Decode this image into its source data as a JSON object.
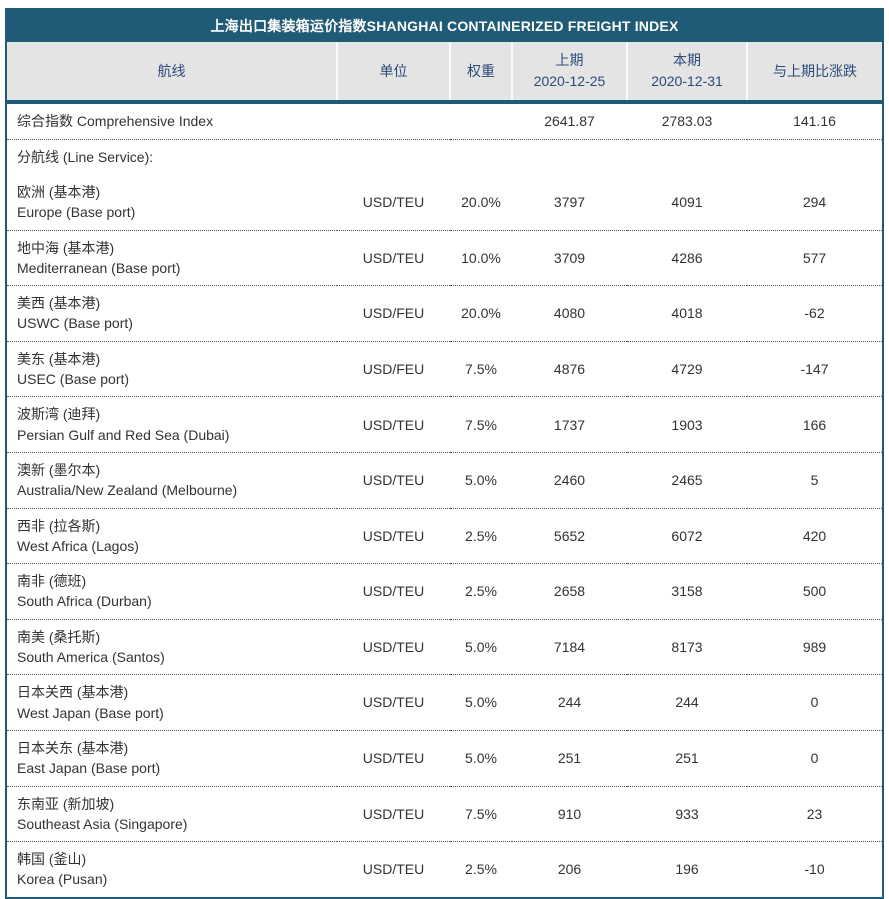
{
  "title": "上海出口集装箱运价指数SHANGHAI CONTAINERIZED FREIGHT INDEX",
  "colors": {
    "frame_teal": "#1f5b76",
    "header_bg": "#e4e4e4",
    "header_text": "#2a4b7c",
    "body_text": "#333333"
  },
  "table": {
    "columns": {
      "route": {
        "label": "航线"
      },
      "unit": {
        "label": "单位"
      },
      "weight": {
        "label": "权重"
      },
      "prev": {
        "label": "上期",
        "sub": "2020-12-25"
      },
      "curr": {
        "label": "本期",
        "sub": "2020-12-31"
      },
      "change": {
        "label": "与上期比涨跌"
      }
    },
    "summary_row": {
      "route": "综合指数 Comprehensive Index",
      "unit": "",
      "weight": "",
      "prev": "2641.87",
      "curr": "2783.03",
      "change": "141.16"
    },
    "section_label": "分航线 (Line Service):",
    "rows": [
      {
        "cn": "欧洲 (基本港)",
        "en": "Europe (Base port)",
        "unit": "USD/TEU",
        "weight": "20.0%",
        "prev": "3797",
        "curr": "4091",
        "change": "294"
      },
      {
        "cn": "地中海 (基本港)",
        "en": "Mediterranean (Base port)",
        "unit": "USD/TEU",
        "weight": "10.0%",
        "prev": "3709",
        "curr": "4286",
        "change": "577"
      },
      {
        "cn": "美西 (基本港)",
        "en": "USWC (Base port)",
        "unit": "USD/FEU",
        "weight": "20.0%",
        "prev": "4080",
        "curr": "4018",
        "change": "-62"
      },
      {
        "cn": "美东 (基本港)",
        "en": "USEC (Base port)",
        "unit": "USD/FEU",
        "weight": "7.5%",
        "prev": "4876",
        "curr": "4729",
        "change": "-147"
      },
      {
        "cn": "波斯湾 (迪拜)",
        "en": "Persian Gulf and Red Sea (Dubai)",
        "unit": "USD/TEU",
        "weight": "7.5%",
        "prev": "1737",
        "curr": "1903",
        "change": "166"
      },
      {
        "cn": "澳新 (墨尔本)",
        "en": "Australia/New Zealand (Melbourne)",
        "unit": "USD/TEU",
        "weight": "5.0%",
        "prev": "2460",
        "curr": "2465",
        "change": "5"
      },
      {
        "cn": "西非 (拉各斯)",
        "en": "West Africa (Lagos)",
        "unit": "USD/TEU",
        "weight": "2.5%",
        "prev": "5652",
        "curr": "6072",
        "change": "420"
      },
      {
        "cn": "南非 (德班)",
        "en": "South Africa (Durban)",
        "unit": "USD/TEU",
        "weight": "2.5%",
        "prev": "2658",
        "curr": "3158",
        "change": "500"
      },
      {
        "cn": "南美 (桑托斯)",
        "en": "South America (Santos)",
        "unit": "USD/TEU",
        "weight": "5.0%",
        "prev": "7184",
        "curr": "8173",
        "change": "989"
      },
      {
        "cn": "日本关西 (基本港)",
        "en": "West Japan (Base port)",
        "unit": "USD/TEU",
        "weight": "5.0%",
        "prev": "244",
        "curr": "244",
        "change": "0"
      },
      {
        "cn": "日本关东 (基本港)",
        "en": "East Japan (Base port)",
        "unit": "USD/TEU",
        "weight": "5.0%",
        "prev": "251",
        "curr": "251",
        "change": "0"
      },
      {
        "cn": "东南亚 (新加坡)",
        "en": "Southeast Asia (Singapore)",
        "unit": "USD/TEU",
        "weight": "7.5%",
        "prev": "910",
        "curr": "933",
        "change": "23"
      },
      {
        "cn": "韩国 (釜山)",
        "en": "Korea (Pusan)",
        "unit": "USD/TEU",
        "weight": "2.5%",
        "prev": "206",
        "curr": "196",
        "change": "-10"
      }
    ]
  }
}
